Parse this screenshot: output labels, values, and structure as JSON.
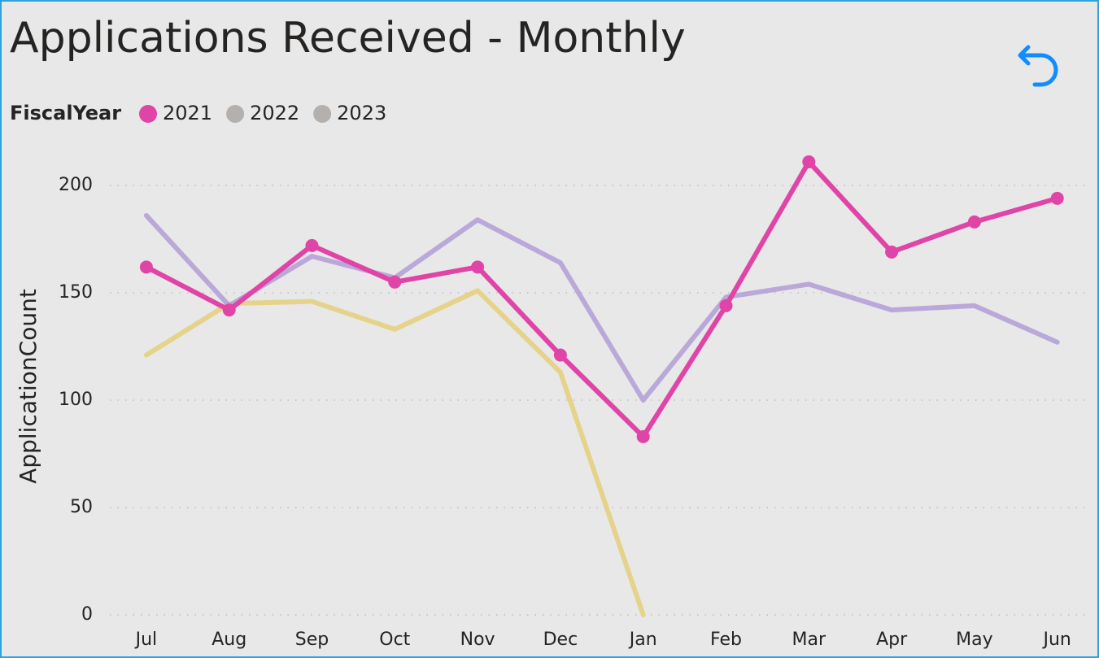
{
  "chart_data": {
    "type": "line",
    "title": "Applications Received - Monthly",
    "legend_title": "FiscalYear",
    "y_label": "ApplicationCount",
    "categories": [
      "Jul",
      "Aug",
      "Sep",
      "Oct",
      "Nov",
      "Dec",
      "Jan",
      "Feb",
      "Mar",
      "Apr",
      "May",
      "Jun"
    ],
    "series": [
      {
        "name": "2021",
        "color": "#e044a7",
        "legend_color": "#e044a7",
        "markers": true,
        "values": [
          162,
          142,
          172,
          155,
          162,
          121,
          83,
          144,
          211,
          169,
          183,
          194
        ]
      },
      {
        "name": "2022",
        "color": "#b9a8d9",
        "legend_color": "#b3b0ad",
        "markers": false,
        "values": [
          186,
          144,
          167,
          157,
          184,
          164,
          100,
          148,
          154,
          142,
          144,
          127
        ]
      },
      {
        "name": "2023",
        "color": "#e5d38b",
        "legend_color": "#b3b0ad",
        "markers": false,
        "values": [
          121,
          145,
          146,
          133,
          151,
          113,
          0,
          null,
          null,
          null,
          null,
          null
        ]
      }
    ],
    "ylim": [
      0,
      220
    ],
    "yticks": [
      0,
      50,
      100,
      150,
      200
    ],
    "grid": true
  }
}
